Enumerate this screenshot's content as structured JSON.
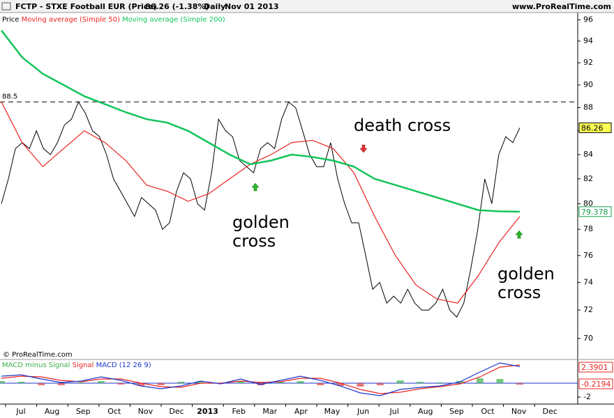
{
  "header": {
    "title": "FCTP - STXE Football EUR (Price)",
    "quote": "86.26 (-1.38%)",
    "period": "Daily",
    "date": "Nov 01 2013",
    "site": "www.ProRealTime.com"
  },
  "copyright": "© ProRealTime.com",
  "chart_data": [
    {
      "type": "line",
      "log_scale": true,
      "ylim": [
        68.7,
        96.7
      ],
      "yticks": [
        70,
        72,
        74,
        76,
        78,
        80,
        82,
        84,
        86,
        88,
        90,
        92,
        94,
        96
      ],
      "x_labels": [
        "Jul",
        "Aug",
        "Sep",
        "Oct",
        "Nov",
        "Dec",
        "2013",
        "Feb",
        "Mar",
        "Apr",
        "May",
        "Jun",
        "Jul",
        "Aug",
        "Sep",
        "Oct",
        "Nov",
        "Dec"
      ],
      "reference_line": 88.5,
      "annotations": [
        {
          "text": "golden cross"
        },
        {
          "text": "death cross"
        },
        {
          "text": "golden cross"
        }
      ],
      "series": [
        {
          "name": "Price",
          "color": "#000000",
          "values": [
            80,
            82,
            84.5,
            85,
            84.5,
            86,
            84.5,
            84,
            85,
            86.5,
            87,
            88.5,
            87.5,
            86,
            85.5,
            84,
            82,
            81,
            80,
            79,
            80.5,
            80,
            79.5,
            78,
            78.5,
            81,
            82.5,
            82,
            80,
            79.5,
            82.5,
            87,
            86,
            85.5,
            83.5,
            83,
            82.5,
            84.5,
            85,
            84.5,
            87,
            88.5,
            88,
            86,
            84,
            83,
            83,
            85,
            82,
            80,
            78.5,
            78.5,
            76,
            73.5,
            74,
            72.5,
            73,
            72.5,
            73.5,
            72.5,
            72,
            72,
            72.5,
            73.5,
            72,
            71.5,
            72.5,
            75,
            78,
            82,
            80,
            84,
            85.5,
            85,
            86.26
          ]
        },
        {
          "name": "Moving average (Simple 50)",
          "color": "#e8231f",
          "values": [
            88.5,
            85,
            83,
            84.5,
            86,
            85,
            83.5,
            81.5,
            81,
            80.2,
            80.8,
            82,
            83.2,
            84,
            85,
            85.2,
            84.5,
            82.5,
            79,
            76,
            73.8,
            72.8,
            72.5,
            74.5,
            77,
            79
          ]
        },
        {
          "name": "Moving average (Simple 200)",
          "color": "#12c45a",
          "values": [
            95,
            92.5,
            91,
            90,
            89,
            88.3,
            87.6,
            87,
            86.7,
            86,
            85,
            84,
            83.2,
            83.5,
            84,
            83.8,
            83.5,
            83,
            82,
            81.5,
            81,
            80.5,
            80,
            79.5,
            79.4,
            79.378
          ]
        }
      ]
    },
    {
      "type": "macd",
      "ylim": [
        -3,
        3.2
      ],
      "yticks": [
        -2
      ],
      "series": [
        {
          "name": "MACD minus Signal",
          "color": "#3cb04a",
          "negative_color": "#e04040",
          "values": [
            0.3,
            0.2,
            -0.3,
            -0.3,
            0.1,
            0.3,
            -0.2,
            -0.4,
            -0.3,
            0.2,
            0.3,
            -0.1,
            0.3,
            -0.3,
            0.2,
            0.3,
            -0.3,
            -0.4,
            -0.5,
            -0.3,
            0.4,
            0.2,
            0.1,
            0.3,
            0.7,
            0.6,
            -0.2194
          ]
        },
        {
          "name": "Signal",
          "color": "#e8231f",
          "values": [
            0.7,
            1.0,
            0.9,
            0.4,
            0.2,
            0.6,
            0.6,
            0.0,
            -0.5,
            -0.6,
            0.0,
            0.0,
            0.3,
            0.1,
            0.2,
            0.7,
            0.7,
            0.0,
            -0.9,
            -1.5,
            -1.3,
            -0.8,
            -0.5,
            -0.1,
            0.9,
            2.3,
            2.6095
          ]
        },
        {
          "name": "MACD (12 26 9)",
          "color": "#1c35c9",
          "values": [
            1.0,
            1.2,
            0.6,
            0.1,
            0.3,
            0.9,
            0.4,
            -0.4,
            -0.8,
            -0.4,
            0.3,
            -0.1,
            0.6,
            -0.2,
            0.4,
            1.0,
            0.4,
            -0.4,
            -1.4,
            -1.8,
            -0.9,
            -0.6,
            -0.4,
            0.2,
            1.6,
            2.9,
            2.3901
          ]
        }
      ]
    }
  ]
}
